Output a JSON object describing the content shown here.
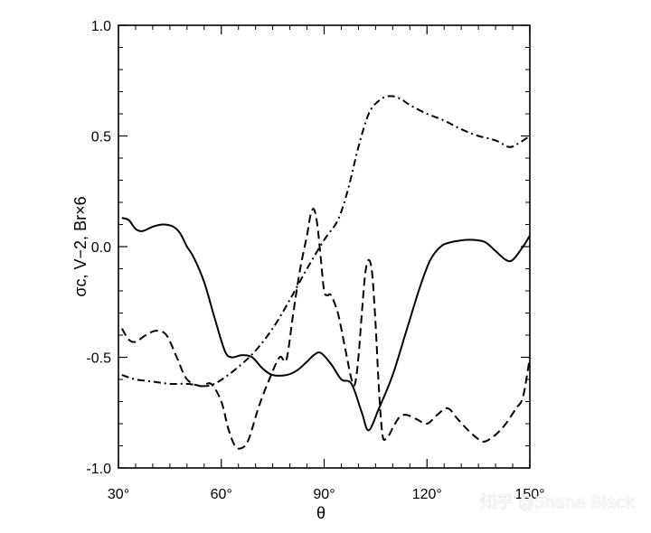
{
  "chart_data": {
    "type": "line",
    "title": "",
    "xlabel": "θ",
    "ylabel": "σc, V−2, Br×6",
    "xlim": [
      30,
      150
    ],
    "ylim": [
      -1.0,
      1.0
    ],
    "x_ticks": [
      {
        "value": 30,
        "label": "30°"
      },
      {
        "value": 60,
        "label": "60°"
      },
      {
        "value": 90,
        "label": "90°"
      },
      {
        "value": 120,
        "label": "120°"
      },
      {
        "value": 150,
        "label": "150°"
      }
    ],
    "y_ticks": [
      {
        "value": 1.0,
        "label": "1.0"
      },
      {
        "value": 0.5,
        "label": "0.5"
      },
      {
        "value": 0.0,
        "label": "0.0"
      },
      {
        "value": -0.5,
        "label": "-0.5"
      },
      {
        "value": -1.0,
        "label": "-1.0"
      }
    ],
    "series": [
      {
        "style": "solid",
        "x": [
          31,
          33,
          35,
          37,
          40,
          43,
          46,
          48,
          50,
          52,
          55,
          58,
          61,
          63,
          66,
          69,
          72,
          75,
          79,
          82,
          85,
          87,
          89,
          92,
          95,
          98,
          101,
          103,
          106,
          110,
          114,
          118,
          121,
          124,
          127,
          131,
          134,
          137,
          140,
          143,
          145,
          148,
          150
        ],
        "y": [
          0.13,
          0.12,
          0.08,
          0.07,
          0.09,
          0.1,
          0.09,
          0.06,
          0.0,
          -0.05,
          -0.16,
          -0.32,
          -0.47,
          -0.5,
          -0.49,
          -0.5,
          -0.55,
          -0.58,
          -0.58,
          -0.56,
          -0.52,
          -0.49,
          -0.48,
          -0.53,
          -0.6,
          -0.62,
          -0.75,
          -0.83,
          -0.73,
          -0.58,
          -0.38,
          -0.18,
          -0.06,
          0.0,
          0.02,
          0.03,
          0.03,
          0.02,
          -0.02,
          -0.06,
          -0.06,
          0.0,
          0.05
        ]
      },
      {
        "style": "dashed",
        "x": [
          31,
          33,
          35,
          38,
          41,
          44,
          47,
          50,
          54,
          57,
          60,
          62,
          64,
          66,
          68,
          71,
          74,
          77,
          79,
          81,
          83,
          85,
          86,
          87,
          88,
          89,
          90,
          91,
          92,
          94,
          96,
          98,
          99,
          100,
          101,
          102,
          103,
          104,
          105,
          106,
          107,
          108,
          109,
          110,
          112,
          114,
          117,
          120,
          123,
          126,
          129,
          132,
          135,
          137,
          140,
          143,
          146,
          148,
          150
        ],
        "y": [
          -0.37,
          -0.42,
          -0.43,
          -0.4,
          -0.38,
          -0.4,
          -0.5,
          -0.6,
          -0.63,
          -0.62,
          -0.7,
          -0.82,
          -0.9,
          -0.91,
          -0.87,
          -0.72,
          -0.6,
          -0.5,
          -0.51,
          -0.3,
          -0.1,
          0.05,
          0.14,
          0.17,
          0.1,
          -0.05,
          -0.2,
          -0.22,
          -0.22,
          -0.3,
          -0.45,
          -0.6,
          -0.62,
          -0.5,
          -0.3,
          -0.12,
          -0.06,
          -0.12,
          -0.35,
          -0.65,
          -0.85,
          -0.87,
          -0.85,
          -0.82,
          -0.77,
          -0.76,
          -0.78,
          -0.8,
          -0.76,
          -0.73,
          -0.78,
          -0.83,
          -0.87,
          -0.88,
          -0.85,
          -0.8,
          -0.73,
          -0.68,
          -0.5
        ]
      },
      {
        "style": "dashdot",
        "x": [
          31,
          35,
          40,
          45,
          50,
          55,
          58,
          62,
          66,
          70,
          75,
          80,
          85,
          90,
          94,
          97,
          100,
          103,
          106,
          109,
          112,
          115,
          120,
          125,
          130,
          135,
          140,
          144,
          147,
          150
        ],
        "y": [
          -0.58,
          -0.6,
          -0.61,
          -0.62,
          -0.62,
          -0.63,
          -0.62,
          -0.58,
          -0.53,
          -0.47,
          -0.37,
          -0.24,
          -0.1,
          0.03,
          0.12,
          0.26,
          0.45,
          0.6,
          0.66,
          0.68,
          0.67,
          0.64,
          0.6,
          0.57,
          0.53,
          0.5,
          0.48,
          0.45,
          0.47,
          0.5
        ]
      }
    ],
    "grid": false,
    "legend": "none"
  },
  "watermark": {
    "text": "知乎 @Shane Black"
  }
}
